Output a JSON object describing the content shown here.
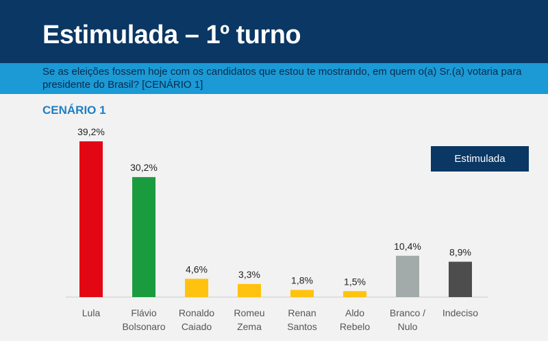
{
  "header": {
    "title": "Estimulada – 1º turno"
  },
  "question": {
    "text": "Se as eleições fossem hoje com os candidatos que estou te mostrando, em quem o(a) Sr.(a) votaria para presidente do Brasil? [CENÁRIO 1]"
  },
  "scenario_label": "CENÁRIO 1",
  "legend": {
    "label": "Estimulada",
    "placement": "top-right",
    "color": "#0a3763"
  },
  "chart_data": {
    "type": "bar",
    "title": "",
    "xlabel": "",
    "ylabel": "",
    "ylim": [
      0,
      40
    ],
    "grid": false,
    "categories": [
      [
        "Lula"
      ],
      [
        "Flávio",
        "Bolsonaro"
      ],
      [
        "Ronaldo",
        "Caiado"
      ],
      [
        "Romeu",
        "Zema"
      ],
      [
        "Renan",
        "Santos"
      ],
      [
        "Aldo",
        "Rebelo"
      ],
      [
        "Branco /",
        "Nulo"
      ],
      [
        "Indeciso"
      ]
    ],
    "values": [
      39.2,
      30.2,
      4.6,
      3.3,
      1.8,
      1.5,
      10.4,
      8.9
    ],
    "value_labels": [
      "39,2%",
      "30,2%",
      "4,6%",
      "3,3%",
      "1,8%",
      "1,5%",
      "10,4%",
      "8,9%"
    ],
    "colors": [
      "#e30613",
      "#1a9c3e",
      "#ffc20e",
      "#ffc20e",
      "#ffc20e",
      "#ffc20e",
      "#a3aaaa",
      "#4d4d4d"
    ]
  }
}
